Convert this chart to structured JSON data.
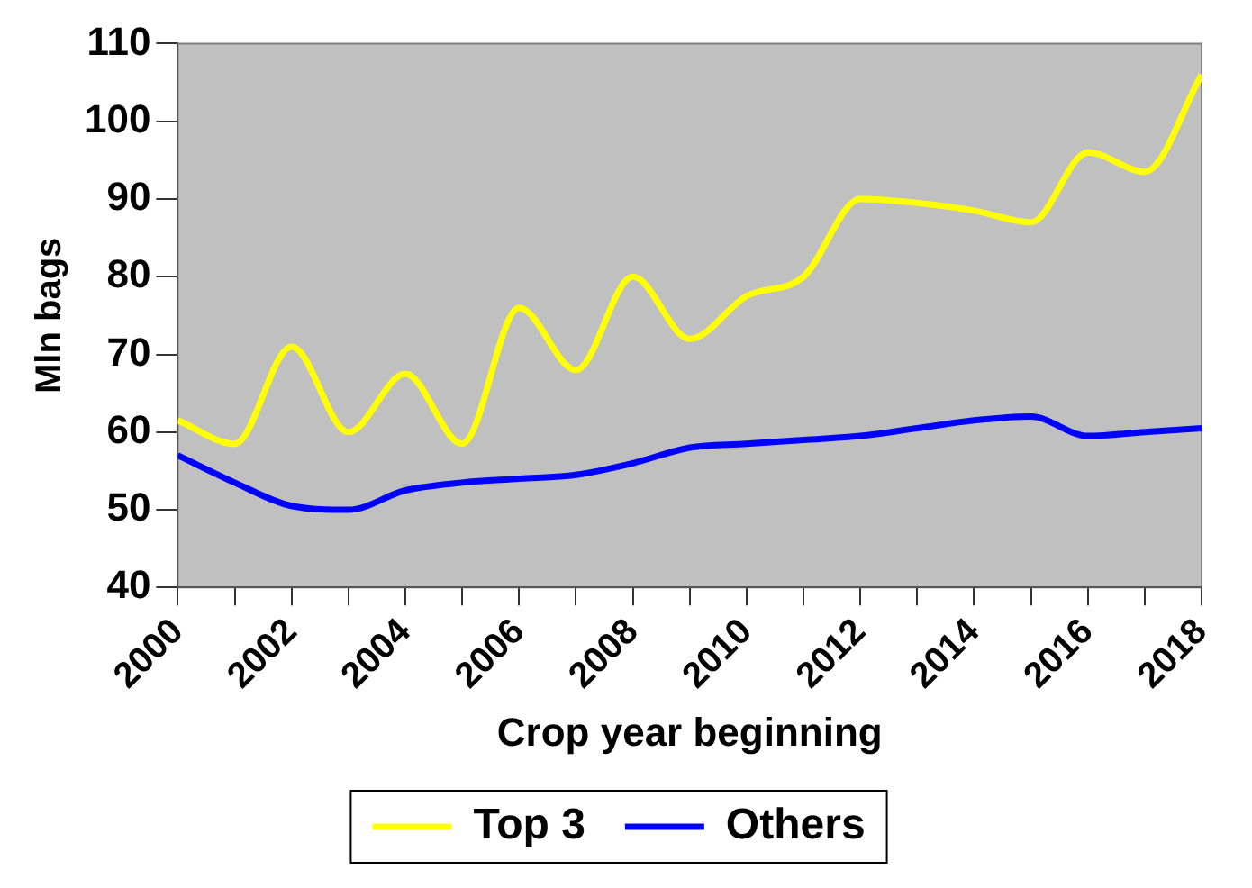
{
  "chart_data": {
    "type": "line",
    "xlabel": "Crop year beginning",
    "ylabel": "Mln bags",
    "x": [
      2000,
      2001,
      2002,
      2003,
      2004,
      2005,
      2006,
      2007,
      2008,
      2009,
      2010,
      2011,
      2012,
      2013,
      2014,
      2015,
      2016,
      2017,
      2018
    ],
    "series": [
      {
        "name": "Top 3",
        "color": "#ffff00",
        "values": [
          61.5,
          58.5,
          71,
          60,
          67.5,
          58.5,
          76,
          68,
          80,
          72,
          77.5,
          80,
          90,
          89.5,
          88.5,
          87,
          96,
          93.5,
          106
        ]
      },
      {
        "name": "Others",
        "color": "#0000ff",
        "values": [
          57,
          53.5,
          50.5,
          50,
          52.5,
          53.5,
          54,
          54.5,
          56,
          58,
          58.5,
          59,
          59.5,
          60.5,
          61.5,
          62,
          59.5,
          60,
          60.5
        ]
      }
    ],
    "xlim": [
      2000,
      2018
    ],
    "xticks": [
      2000,
      {
        "value": 2001,
        "label": null
      },
      2002,
      {
        "value": 2003,
        "label": null
      },
      2004,
      {
        "value": 2005,
        "label": null
      },
      2006,
      {
        "value": 2007,
        "label": null
      },
      2008,
      {
        "value": 2009,
        "label": null
      },
      2010,
      {
        "value": 2011,
        "label": null
      },
      2012,
      {
        "value": 2013,
        "label": null
      },
      2014,
      {
        "value": 2015,
        "label": null
      },
      2016,
      {
        "value": 2017,
        "label": null
      },
      2018
    ],
    "ylim": [
      40,
      110
    ],
    "yticks": [
      40,
      50,
      60,
      70,
      80,
      90,
      100,
      110
    ],
    "grid": false,
    "legend": "bottom",
    "marker": "none",
    "line_style": "solid"
  }
}
